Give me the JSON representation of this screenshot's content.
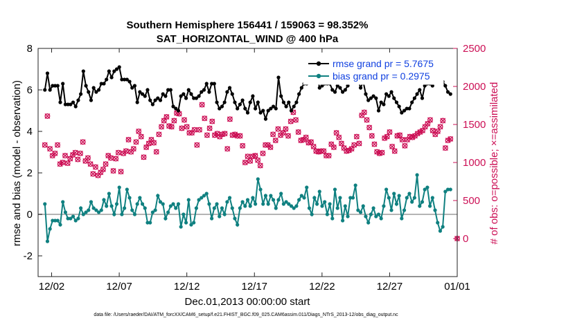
{
  "chart_data": {
    "type": "line",
    "title_line1": "Southern Hemisphere 156441 / 159063 = 98.352%",
    "title_line2": "SAT_HORIZONTAL_WIND @ 400 hPa",
    "xlabel": "Dec.01,2013 00:00:00 start",
    "ylabel_left": "rmse and bias (model - observation)",
    "ylabel_right": "# of obs: o=possible; ×=assimilated",
    "footer": "data file: /Users/raeder/DAI/ATM_forcXX/CAM6_setup/f.e21.FHIST_BGC.f09_025.CAM6assim.011/Diags_NTrS_2013-12/obs_diag_output.nc",
    "x_tick_labels": [
      "12/02",
      "12/07",
      "12/12",
      "12/17",
      "12/22",
      "12/27",
      "01/01"
    ],
    "x_tick_days": [
      1,
      6,
      11,
      16,
      21,
      26,
      31
    ],
    "xlim_days": [
      0,
      31
    ],
    "ylim_left": [
      -3,
      8
    ],
    "yticks_left": [
      "-2",
      "0",
      "2",
      "4",
      "6",
      "8"
    ],
    "ylim_right": [
      -500,
      2500
    ],
    "yticks_right": [
      "0",
      "500",
      "1000",
      "1500",
      "2000",
      "2500"
    ],
    "legend": [
      "rmse grand pr = 5.7675",
      "bias grand pr = 0.2975"
    ],
    "colors": {
      "rmse": "#000000",
      "bias": "#0f8080",
      "obs": "#cc0f55",
      "zero": "#b4b4b4"
    },
    "series": [
      {
        "name": "rmse",
        "values": [
          6.0,
          6.8,
          6.0,
          6.2,
          6.2,
          6.2,
          5.4,
          6.3,
          5.3,
          5.3,
          5.3,
          5.4,
          5.2,
          5.5,
          5.8,
          6.9,
          6.2,
          5.9,
          5.5,
          6.1,
          5.9,
          6.0,
          6.3,
          6.3,
          6.5,
          6.9,
          6.6,
          6.9,
          7.0,
          7.1,
          6.5,
          6.5,
          6.5,
          6.4,
          6.1,
          6.2,
          5.4,
          5.9,
          5.8,
          5.7,
          6.0,
          5.5,
          5.3,
          5.5,
          5.6,
          5.5,
          5.8,
          5.7,
          6.0,
          6.0,
          5.2,
          5.1,
          5.0,
          5.7,
          5.8,
          5.6,
          6.0,
          5.8,
          5.6,
          5.6,
          5.7,
          5.9,
          6.0,
          6.3,
          5.9,
          6.3,
          6.3,
          5.4,
          5.1,
          5.2,
          5.4,
          5.9,
          6.1,
          5.8,
          5.4,
          5.1,
          5.3,
          5.5,
          5.1,
          4.9,
          5.4,
          5.7,
          5.1,
          5.4,
          4.9,
          5.0,
          4.6,
          5.0,
          5.1,
          5.2,
          5.1,
          6.6,
          5.7,
          5.4,
          5.2,
          5.4,
          5.0,
          5.2,
          5.4,
          5.8,
          6.1,
          6.3,
          6.3,
          6.6,
          6.4,
          6.5,
          6.7,
          6.1,
          6.2,
          6.3,
          6.3,
          6.3,
          6.0,
          5.9,
          6.2,
          6.1,
          5.9,
          6.0,
          6.2,
          6.6,
          7.1,
          6.7,
          6.5,
          6.1,
          6.4,
          5.8,
          5.5,
          5.6,
          5.7,
          5.6,
          5.0,
          5.4,
          5.3,
          5.8,
          5.7,
          5.9,
          5.6,
          5.4,
          5.2,
          4.9,
          5.0,
          5.1,
          5.1,
          5.4,
          5.6,
          5.8,
          6.0,
          5.6,
          6.2,
          6.3,
          6.3,
          6.2,
          6.6,
          7.2,
          6.8,
          6.4,
          6.2,
          5.9,
          5.8
        ]
      },
      {
        "name": "bias",
        "values": [
          0.5,
          -1.3,
          -0.7,
          -0.3,
          -0.3,
          -0.3,
          -0.5,
          0.6,
          0.1,
          -0.2,
          -0.2,
          -0.1,
          -0.3,
          -0.2,
          0.3,
          0.0,
          0.1,
          0.2,
          0.6,
          0.3,
          0.2,
          0.1,
          0.2,
          0.7,
          0.4,
          1.0,
          0.4,
          0.0,
          0.5,
          1.3,
          0.0,
          0.3,
          1.2,
          0.8,
          0.2,
          0.0,
          0.5,
          0.8,
          0.5,
          0.3,
          -0.4,
          -0.4,
          0.1,
          0.2,
          0.9,
          0.6,
          0.5,
          -0.2,
          0.1,
          0.4,
          0.5,
          0.3,
          0.5,
          -0.6,
          0.0,
          -0.4,
          0.7,
          -0.5,
          -0.4,
          0.3,
          0.7,
          0.8,
          0.9,
          1.0,
          0.5,
          -0.2,
          0.3,
          0.5,
          -0.1,
          0.3,
          0.0,
          0.6,
          0.8,
          0.3,
          -0.2,
          -0.5,
          0.3,
          0.6,
          0.4,
          0.7,
          0.4,
          0.8,
          0.5,
          1.7,
          1.2,
          0.5,
          0.9,
          0.5,
          0.9,
          0.7,
          0.3,
          0.7,
          1.0,
          0.5,
          0.6,
          0.5,
          0.4,
          0.3,
          0.4,
          0.7,
          0.9,
          0.8,
          1.3,
          0.3,
          0.0,
          0.8,
          0.5,
          1.1,
          0.4,
          0.6,
          0.0,
          0.5,
          -0.2,
          1.2,
          0.3,
          0.8,
          -0.3,
          0.4,
          -0.1,
          0.8,
          0.8,
          1.4,
          0.2,
          0.1,
          0.4,
          -0.1,
          -0.4,
          0.0,
          0.3,
          -0.1,
          0.0,
          -0.2,
          0.4,
          1.2,
          0.8,
          0.2,
          1.0,
          0.5,
          0.9,
          -0.2,
          0.2,
          0.8,
          1.0,
          0.6,
          0.8,
          1.9,
          0.4,
          0.6,
          1.2,
          1.3,
          0.4,
          0.8,
          0.2,
          -0.4,
          -0.8,
          -0.6,
          1.1,
          1.2,
          1.2
        ]
      },
      {
        "name": "obs",
        "values": [
          1230,
          1610,
          1180,
          1090,
          1120,
          1230,
          980,
          1000,
          1090,
          990,
          1050,
          1100,
          1130,
          1040,
          1120,
          1270,
          1020,
          1060,
          980,
          850,
          940,
          830,
          870,
          910,
          980,
          1090,
          1060,
          890,
          1050,
          1130,
          880,
          1120,
          1150,
          1300,
          1140,
          1180,
          1270,
          1410,
          1340,
          1070,
          1200,
          1250,
          1300,
          1260,
          1140,
          1370,
          1470,
          1550,
          1600,
          1480,
          1470,
          1550,
          1650,
          1640,
          1450,
          1560,
          1470,
          1390,
          1390,
          1430,
          1230,
          1430,
          1760,
          1580,
          1360,
          1450,
          1540,
          1360,
          1380,
          1340,
          1370,
          1380,
          1180,
          1570,
          1360,
          1370,
          1350,
          1350,
          1220,
          1000,
          1080,
          1020,
          1080,
          1090,
          1030,
          960,
          1120,
          1230,
          1230,
          1200,
          1370,
          1290,
          1440,
          1360,
          1390,
          1440,
          1350,
          1540,
          1660,
          1560,
          1400,
          1290,
          1300,
          1330,
          1260,
          1270,
          1210,
          1150,
          1140,
          1150,
          1150,
          1090,
          1090,
          1240,
          1200,
          1390,
          1330,
          1250,
          1190,
          1150,
          1160,
          1180,
          1230,
          1340,
          1250,
          1620,
          1660,
          1560,
          1460,
          1350,
          1240,
          1140,
          1120,
          1130,
          1320,
          1340,
          1400,
          1210,
          1150,
          1350,
          1360,
          1300,
          1220,
          1300,
          1340,
          1330,
          1350,
          1380,
          1400,
          1420,
          1470,
          1510,
          1560,
          1420,
          1370,
          1410,
          1470,
          1550,
          1190,
          1290,
          1310
        ]
      }
    ]
  }
}
